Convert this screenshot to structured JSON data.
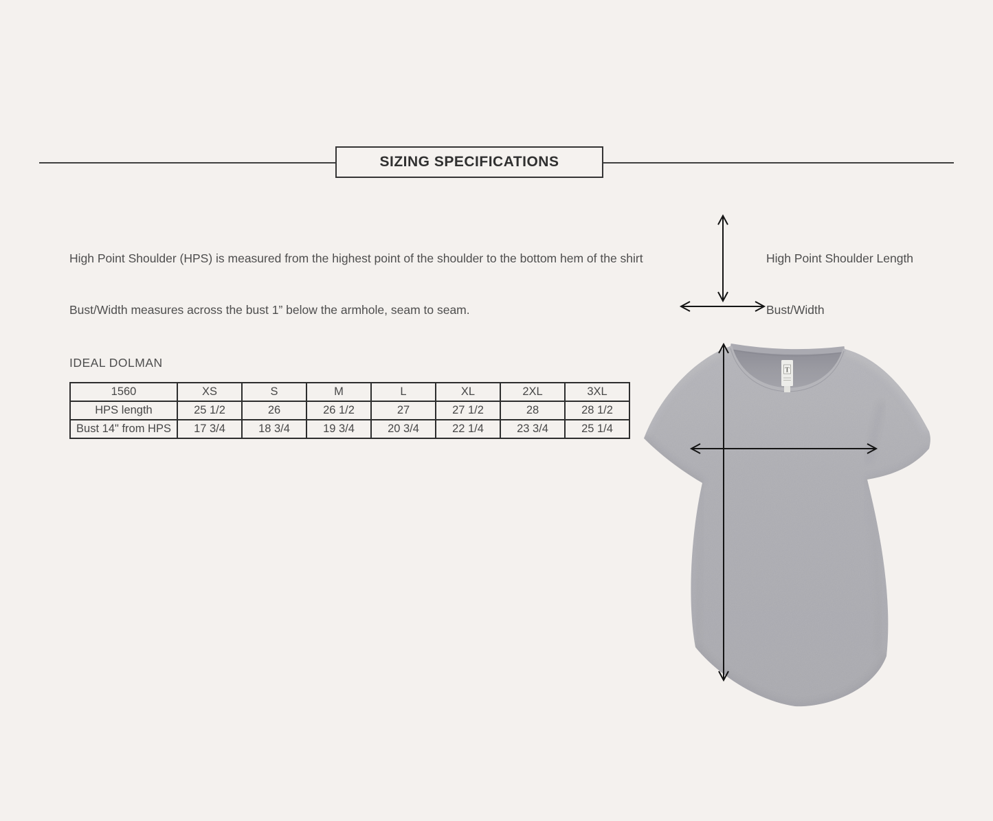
{
  "page": {
    "background_color": "#f4f1ee"
  },
  "header": {
    "title": "SIZING SPECIFICATIONS"
  },
  "descriptions": {
    "hps": "High Point Shoulder (HPS) is measured from the highest point of the shoulder to the bottom hem of the shirt",
    "bust": "Bust/Width measures across the bust 1” below the armhole, seam to seam."
  },
  "diagram": {
    "vertical_label": "High Point Shoulder Length",
    "horizontal_label": "Bust/Width",
    "arrow_color": "#141414"
  },
  "size_chart": {
    "product_name": "IDEAL DOLMAN",
    "style_number": "1560",
    "columns": [
      "XS",
      "S",
      "M",
      "L",
      "XL",
      "2XL",
      "3XL"
    ],
    "rows": [
      {
        "label": "HPS length",
        "values": [
          "25 1/2",
          "26",
          "26 1/2",
          "27",
          "27 1/2",
          "28",
          "28 1/2"
        ]
      },
      {
        "label": "Bust 14\" from HPS",
        "values": [
          "17 3/4",
          "18 3/4",
          "19 3/4",
          "20 3/4",
          "22 1/4",
          "23 3/4",
          "25 1/4"
        ]
      }
    ]
  },
  "shirt": {
    "tag_letter": "T",
    "fabric_color": "#a8a8ae"
  }
}
